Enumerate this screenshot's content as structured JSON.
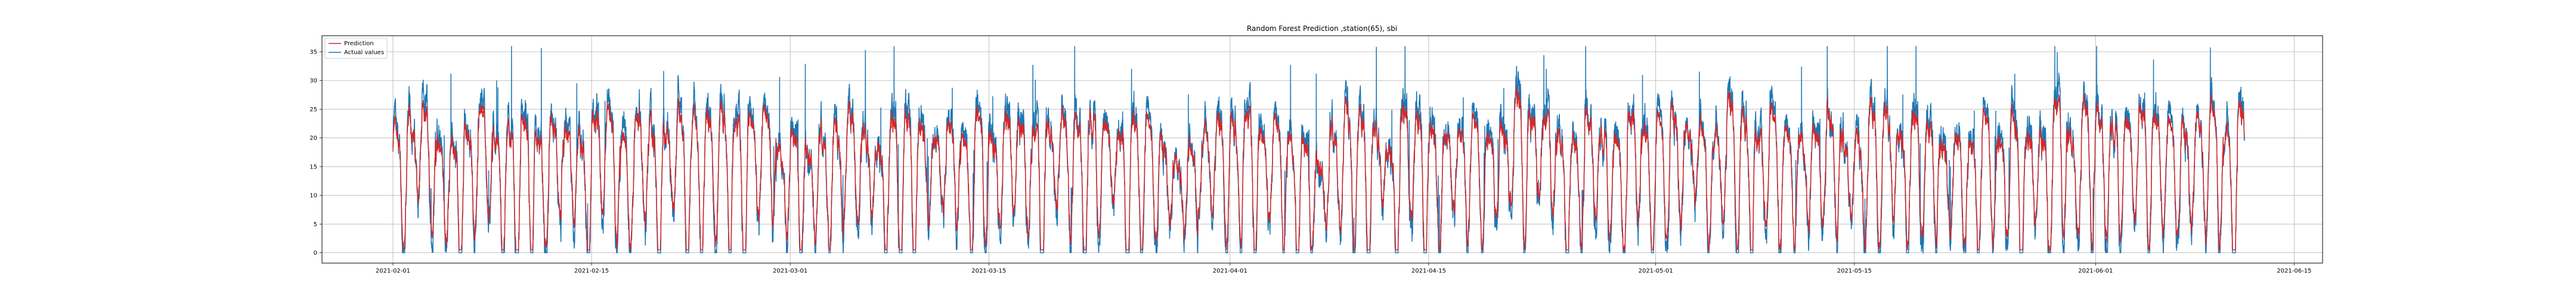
{
  "chart_data": {
    "type": "line",
    "title": "Random Forest Prediction ,station(65), sbi",
    "xlabel": "",
    "ylabel": "",
    "x_range": [
      "2021-01-27",
      "2021-06-17"
    ],
    "x_ticks": [
      "2021-02-01",
      "2021-02-15",
      "2021-03-01",
      "2021-03-15",
      "2021-04-01",
      "2021-04-15",
      "2021-05-01",
      "2021-05-15",
      "2021-06-01",
      "2021-06-15"
    ],
    "ylim": [
      -1.8,
      37.8
    ],
    "y_ticks": [
      0,
      5,
      10,
      15,
      20,
      25,
      30,
      35
    ],
    "grid": true,
    "legend_position": "upper-left",
    "series_start": "2021-02-01T00:00",
    "series_end": "2021-06-11T12:00",
    "sampling": "10-minute intervals; dense daily-cycle signal ranging roughly 0–36",
    "series": [
      {
        "name": "Prediction",
        "color": "#d62728"
      },
      {
        "name": "Actual values",
        "color": "#1f77b4"
      }
    ]
  }
}
